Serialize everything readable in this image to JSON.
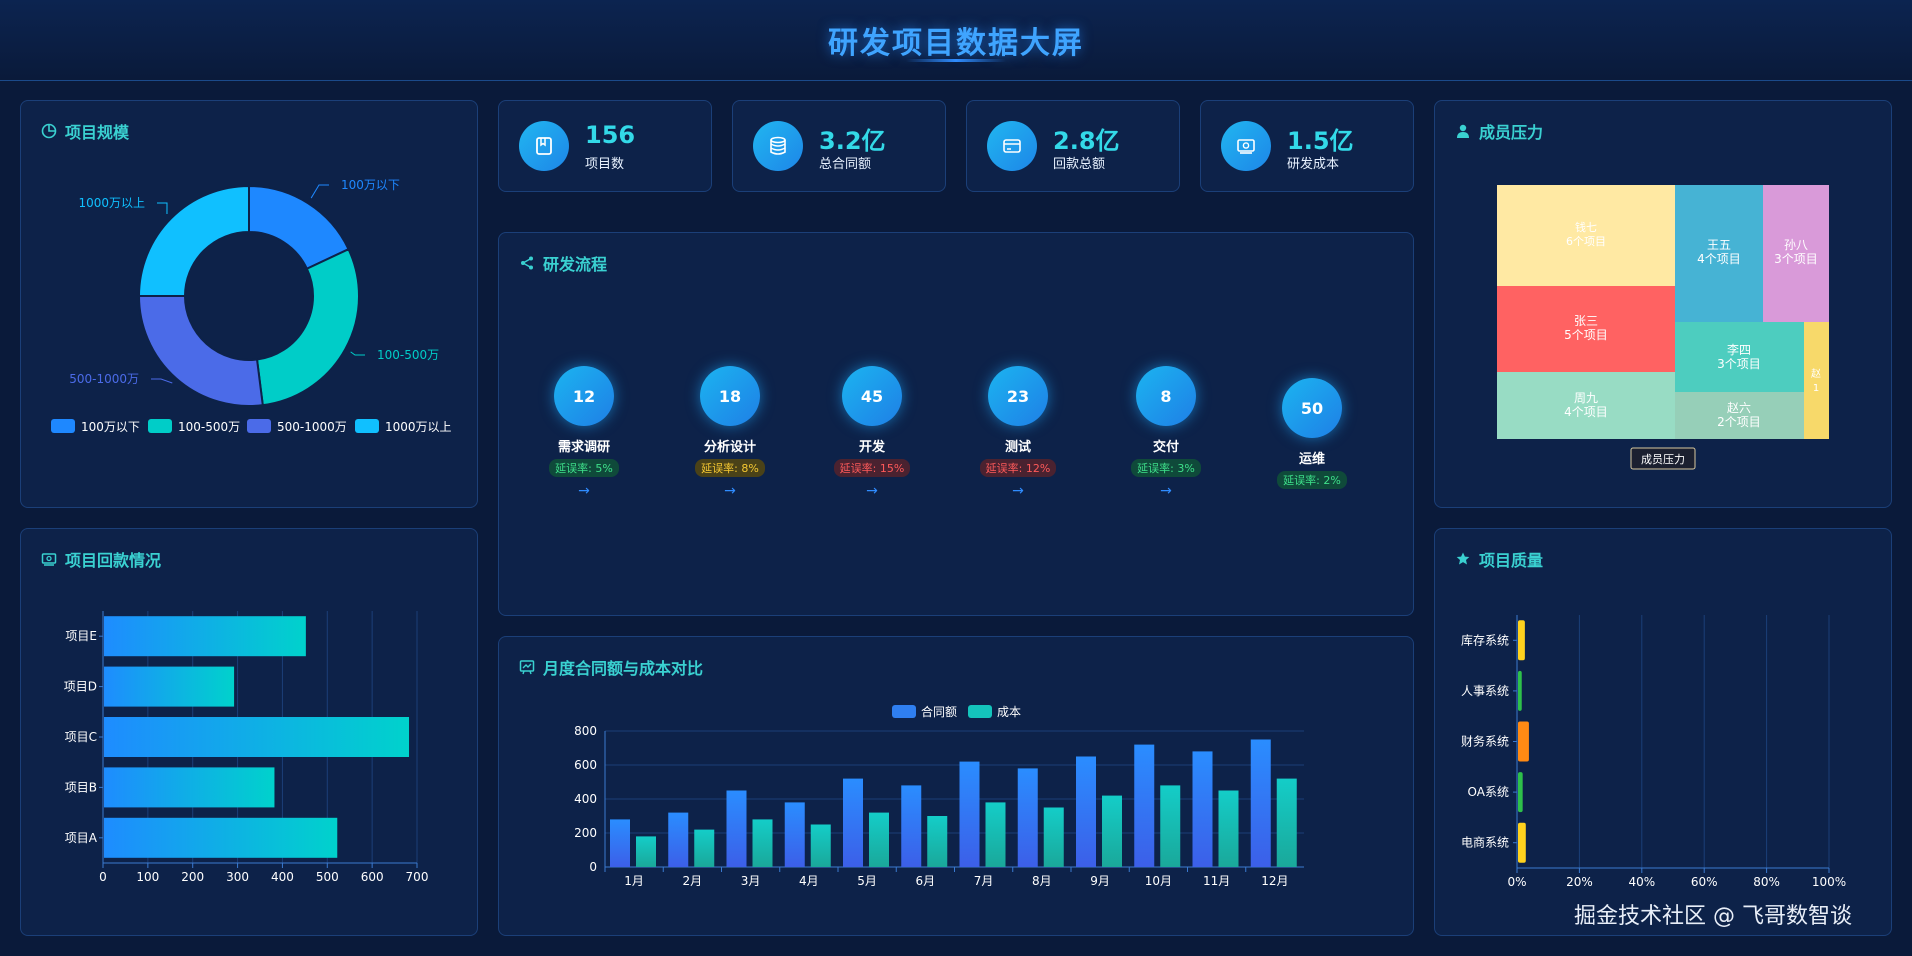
{
  "header": {
    "title": "研发项目数据大屏"
  },
  "kpis": [
    {
      "value": "156",
      "label": "项目数",
      "icon": "book-icon"
    },
    {
      "value": "3.2亿",
      "label": "总合同额",
      "icon": "database-icon"
    },
    {
      "value": "2.8亿",
      "label": "回款总额",
      "icon": "card-icon"
    },
    {
      "value": "1.5亿",
      "label": "研发成本",
      "icon": "money-icon"
    }
  ],
  "panels": {
    "scale": "项目规模",
    "flow": "研发流程",
    "pressure": "成员压力",
    "payment": "项目回款情况",
    "monthly": "月度合同额与成本对比",
    "quality": "项目质量"
  },
  "flow_stages": [
    {
      "count": "12",
      "name": "需求调研",
      "rate": "延误率: 5%",
      "level": "low"
    },
    {
      "count": "18",
      "name": "分析设计",
      "rate": "延误率: 8%",
      "level": "mid"
    },
    {
      "count": "45",
      "name": "开发",
      "rate": "延误率: 15%",
      "level": "high"
    },
    {
      "count": "23",
      "name": "测试",
      "rate": "延误率: 12%",
      "level": "high"
    },
    {
      "count": "8",
      "name": "交付",
      "rate": "延误率: 3%",
      "level": "low"
    },
    {
      "count": "50",
      "name": "运维",
      "rate": "延误率: 2%",
      "level": "low"
    }
  ],
  "colors": {
    "accent": "#3ad1d1",
    "title": "#3fa4ff",
    "blue": "#1e88ff",
    "teal": "#00cdc8",
    "indigo": "#4b6be8",
    "sky": "#10c0ff"
  },
  "treemap": {
    "tooltip": "成员压力",
    "cells": [
      {
        "name": "钱七",
        "projects": "6个项目",
        "color": "#ffe9a3"
      },
      {
        "name": "王五",
        "projects": "4个项目",
        "color": "#46b3d4"
      },
      {
        "name": "孙八",
        "projects": "3个项目",
        "color": "#d99ad9"
      },
      {
        "name": "张三",
        "projects": "5个项目",
        "color": "#ff6262"
      },
      {
        "name": "李四",
        "projects": "3个项目",
        "color": "#4dcdbf"
      },
      {
        "name": "赵",
        "projects": "1",
        "color": "#f7d96a"
      },
      {
        "name": "周九",
        "projects": "4个项目",
        "color": "#98dcc4"
      },
      {
        "name": "赵六",
        "projects": "2个项目",
        "color": "#96cfb8"
      }
    ]
  },
  "watermark": "掘金技术社区 @ 飞哥数智谈",
  "chart_data": [
    {
      "id": "scale",
      "type": "pie",
      "categories": [
        "100万以下",
        "100-500万",
        "500-1000万",
        "1000万以上"
      ],
      "values": [
        18,
        30,
        27,
        25
      ]
    },
    {
      "id": "payment",
      "type": "bar",
      "orientation": "horizontal",
      "categories": [
        "项目A",
        "项目B",
        "项目C",
        "项目D",
        "项目E"
      ],
      "values": [
        520,
        380,
        680,
        290,
        450
      ],
      "xlim": [
        0,
        700
      ],
      "xticks": [
        "0",
        "100",
        "200",
        "300",
        "400",
        "500",
        "600",
        "700"
      ]
    },
    {
      "id": "monthly",
      "type": "bar",
      "categories": [
        "1月",
        "2月",
        "3月",
        "4月",
        "5月",
        "6月",
        "7月",
        "8月",
        "9月",
        "10月",
        "11月",
        "12月"
      ],
      "series": [
        {
          "name": "合同额",
          "values": [
            280,
            320,
            450,
            380,
            520,
            480,
            620,
            580,
            650,
            720,
            680,
            750
          ]
        },
        {
          "name": "成本",
          "values": [
            180,
            220,
            280,
            250,
            320,
            300,
            380,
            350,
            420,
            480,
            450,
            520
          ]
        }
      ],
      "ylim": [
        0,
        800
      ],
      "yticks": [
        "0",
        "200",
        "400",
        "600",
        "800"
      ]
    },
    {
      "id": "quality",
      "type": "bar",
      "orientation": "horizontal",
      "categories": [
        "电商系统",
        "OA系统",
        "财务系统",
        "人事系统",
        "库存系统"
      ],
      "values": [
        2.5,
        1.5,
        3.5,
        1.2,
        2.2
      ],
      "bar_colors": [
        "#ffd21e",
        "#2ec04a",
        "#ff8a14",
        "#2ec04a",
        "#ffd21e"
      ],
      "xlim": [
        0,
        100
      ],
      "xticks": [
        "0%",
        "20%",
        "40%",
        "60%",
        "80%",
        "100%"
      ]
    }
  ]
}
